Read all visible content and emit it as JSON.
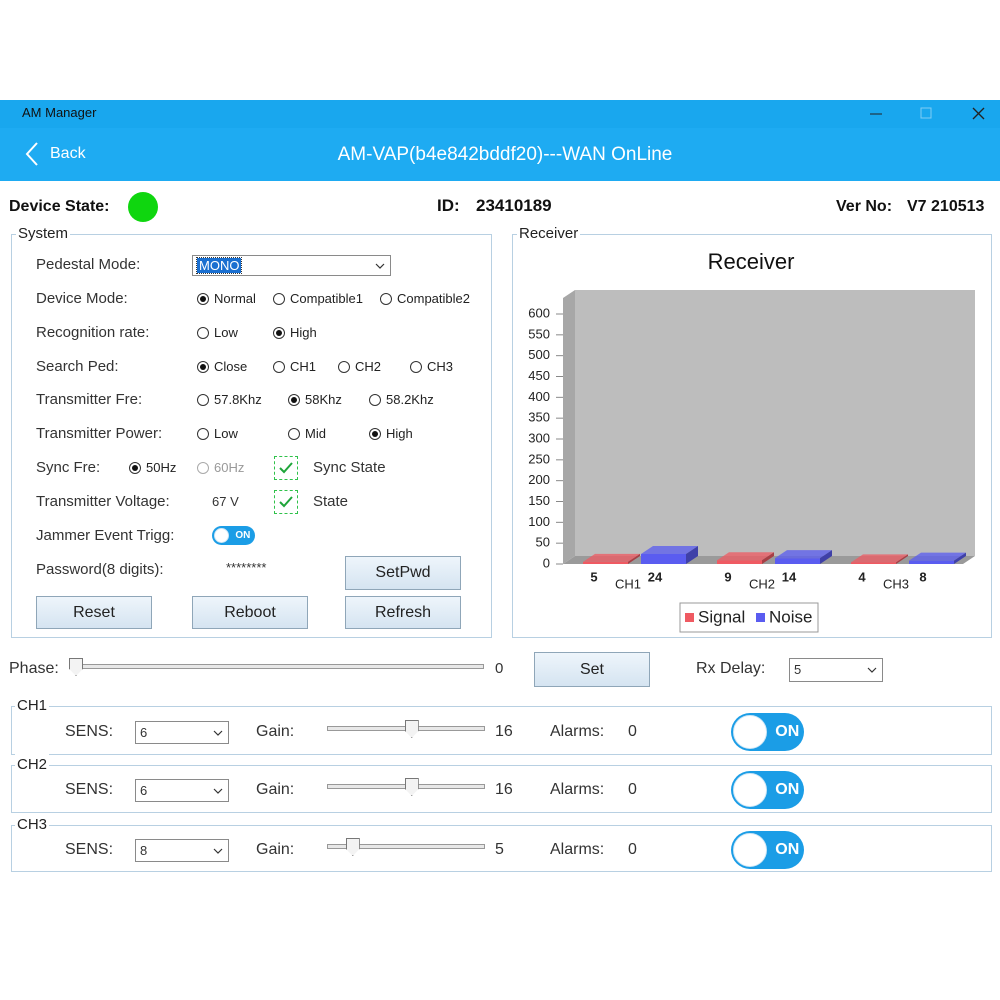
{
  "window": {
    "title": "AM Manager",
    "back": "Back",
    "heading": "AM-VAP(b4e842bddf20)---WAN OnLine"
  },
  "status": {
    "state_label": "Device State:",
    "id_label": "ID:",
    "id": "23410189",
    "ver_label": "Ver No:",
    "ver": "V7 210513"
  },
  "system": {
    "title": "System",
    "pedestal": {
      "label": "Pedestal Mode:",
      "value": "MONO"
    },
    "device_mode": {
      "label": "Device Mode:",
      "options": [
        "Normal",
        "Compatible1",
        "Compatible2"
      ],
      "selected": 0
    },
    "recognition": {
      "label": "Recognition rate:",
      "options": [
        "Low",
        "High"
      ],
      "selected": 1
    },
    "search_ped": {
      "label": "Search Ped:",
      "options": [
        "Close",
        "CH1",
        "CH2",
        "CH3"
      ],
      "selected": 0
    },
    "tx_freq": {
      "label": "Transmitter Fre:",
      "options": [
        "57.8Khz",
        "58Khz",
        "58.2Khz"
      ],
      "selected": 1
    },
    "tx_power": {
      "label": "Transmitter Power:",
      "options": [
        "Low",
        "Mid",
        "High"
      ],
      "selected": 2
    },
    "sync_freq": {
      "label": "Sync Fre:",
      "options": [
        "50Hz",
        "60Hz"
      ],
      "selected": 0,
      "disabled": 1,
      "check_label": "Sync State",
      "checked": true
    },
    "tx_voltage": {
      "label": "Transmitter Voltage:",
      "value": "67 V",
      "check_label": "State",
      "checked": true
    },
    "jammer": {
      "label": "Jammer Event Trigg:",
      "toggle": "ON"
    },
    "password": {
      "label": "Password(8 digits):",
      "value": "********",
      "button": "SetPwd"
    },
    "buttons": [
      "Reset",
      "Reboot",
      "Refresh"
    ]
  },
  "receiver": {
    "title": "Receiver"
  },
  "chart_data": {
    "type": "bar",
    "title": "Receiver",
    "categories": [
      "CH1",
      "CH2",
      "CH3"
    ],
    "series": [
      {
        "name": "Signal",
        "color": "#ef5a62",
        "values": [
          5,
          9,
          4
        ]
      },
      {
        "name": "Noise",
        "color": "#5a5cf0",
        "values": [
          24,
          14,
          8
        ]
      }
    ],
    "ylim": [
      0,
      600
    ],
    "yticks": [
      0,
      50,
      100,
      150,
      200,
      250,
      300,
      350,
      400,
      450,
      500,
      550,
      600
    ]
  },
  "phase": {
    "label": "Phase:",
    "value": 0,
    "button": "Set"
  },
  "rx_delay": {
    "label": "Rx Delay:",
    "value": "5"
  },
  "channels": [
    {
      "name": "CH1",
      "sens_label": "SENS:",
      "sens": "6",
      "gain_label": "Gain:",
      "gain": 16,
      "alarms_label": "Alarms:",
      "alarms": 0,
      "toggle": "ON"
    },
    {
      "name": "CH2",
      "sens_label": "SENS:",
      "sens": "6",
      "gain_label": "Gain:",
      "gain": 16,
      "alarms_label": "Alarms:",
      "alarms": 0,
      "toggle": "ON"
    },
    {
      "name": "CH3",
      "sens_label": "SENS:",
      "sens": "8",
      "gain_label": "Gain:",
      "gain": 5,
      "alarms_label": "Alarms:",
      "alarms": 0,
      "toggle": "ON"
    }
  ]
}
